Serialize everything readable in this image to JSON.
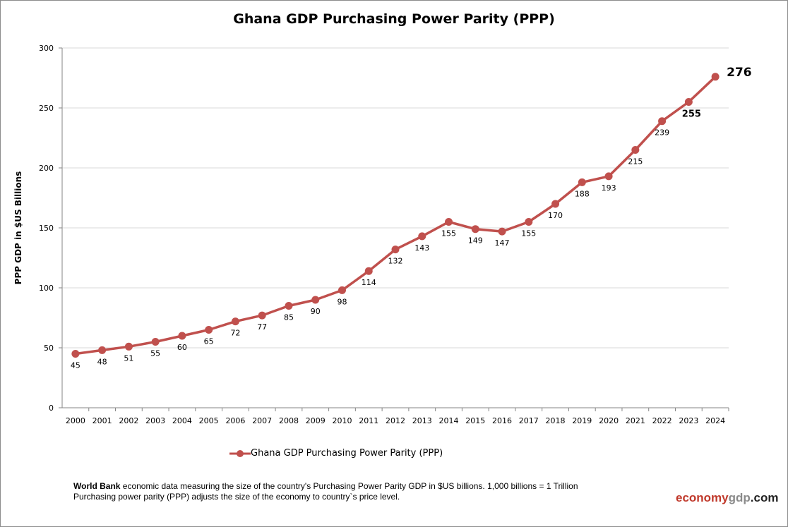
{
  "chart_data": {
    "type": "line",
    "title": "Ghana GDP Purchasing Power Parity (PPP)",
    "xlabel": "",
    "ylabel": "PPP GDP in $US Billions",
    "ylim": [
      0,
      300
    ],
    "yticks": [
      0,
      50,
      100,
      150,
      200,
      250,
      300
    ],
    "grid": true,
    "legend_position": "bottom",
    "categories": [
      "2000",
      "2001",
      "2002",
      "2003",
      "2004",
      "2005",
      "2006",
      "2007",
      "2008",
      "2009",
      "2010",
      "2011",
      "2012",
      "2013",
      "2014",
      "2015",
      "2016",
      "2017",
      "2018",
      "2019",
      "2020",
      "2021",
      "2022",
      "2023",
      "2024"
    ],
    "series": [
      {
        "name": "Ghana GDP Purchasing Power Parity (PPP)",
        "color": "#c0504d",
        "values": [
          45,
          48,
          51,
          55,
          60,
          65,
          72,
          77,
          85,
          90,
          98,
          114,
          132,
          143,
          155,
          149,
          147,
          155,
          170,
          188,
          193,
          215,
          239,
          255,
          276
        ],
        "labels": [
          "45",
          "48",
          "51",
          "55",
          "60",
          "65",
          "72",
          "77",
          "85",
          "90",
          "98",
          "114",
          "132",
          "143",
          "155",
          "149",
          "147",
          "155",
          "170",
          "188",
          "193",
          "215",
          "239",
          "255",
          "276"
        ]
      }
    ]
  },
  "footer": {
    "source_bold": "World Bank",
    "line1": " economic data  measuring the size of the country's Purchasing Power Parity GDP in $US billions. 1,000 billions = 1 Trillion",
    "line2": "Purchasing power parity (PPP) adjusts the size of the economy to country`s price level."
  },
  "logo": {
    "part1": "economy",
    "part2": "gdp",
    "part3": ".com",
    "color1": "#c0392b",
    "color2": "#8a8a8a",
    "color3": "#222222"
  }
}
